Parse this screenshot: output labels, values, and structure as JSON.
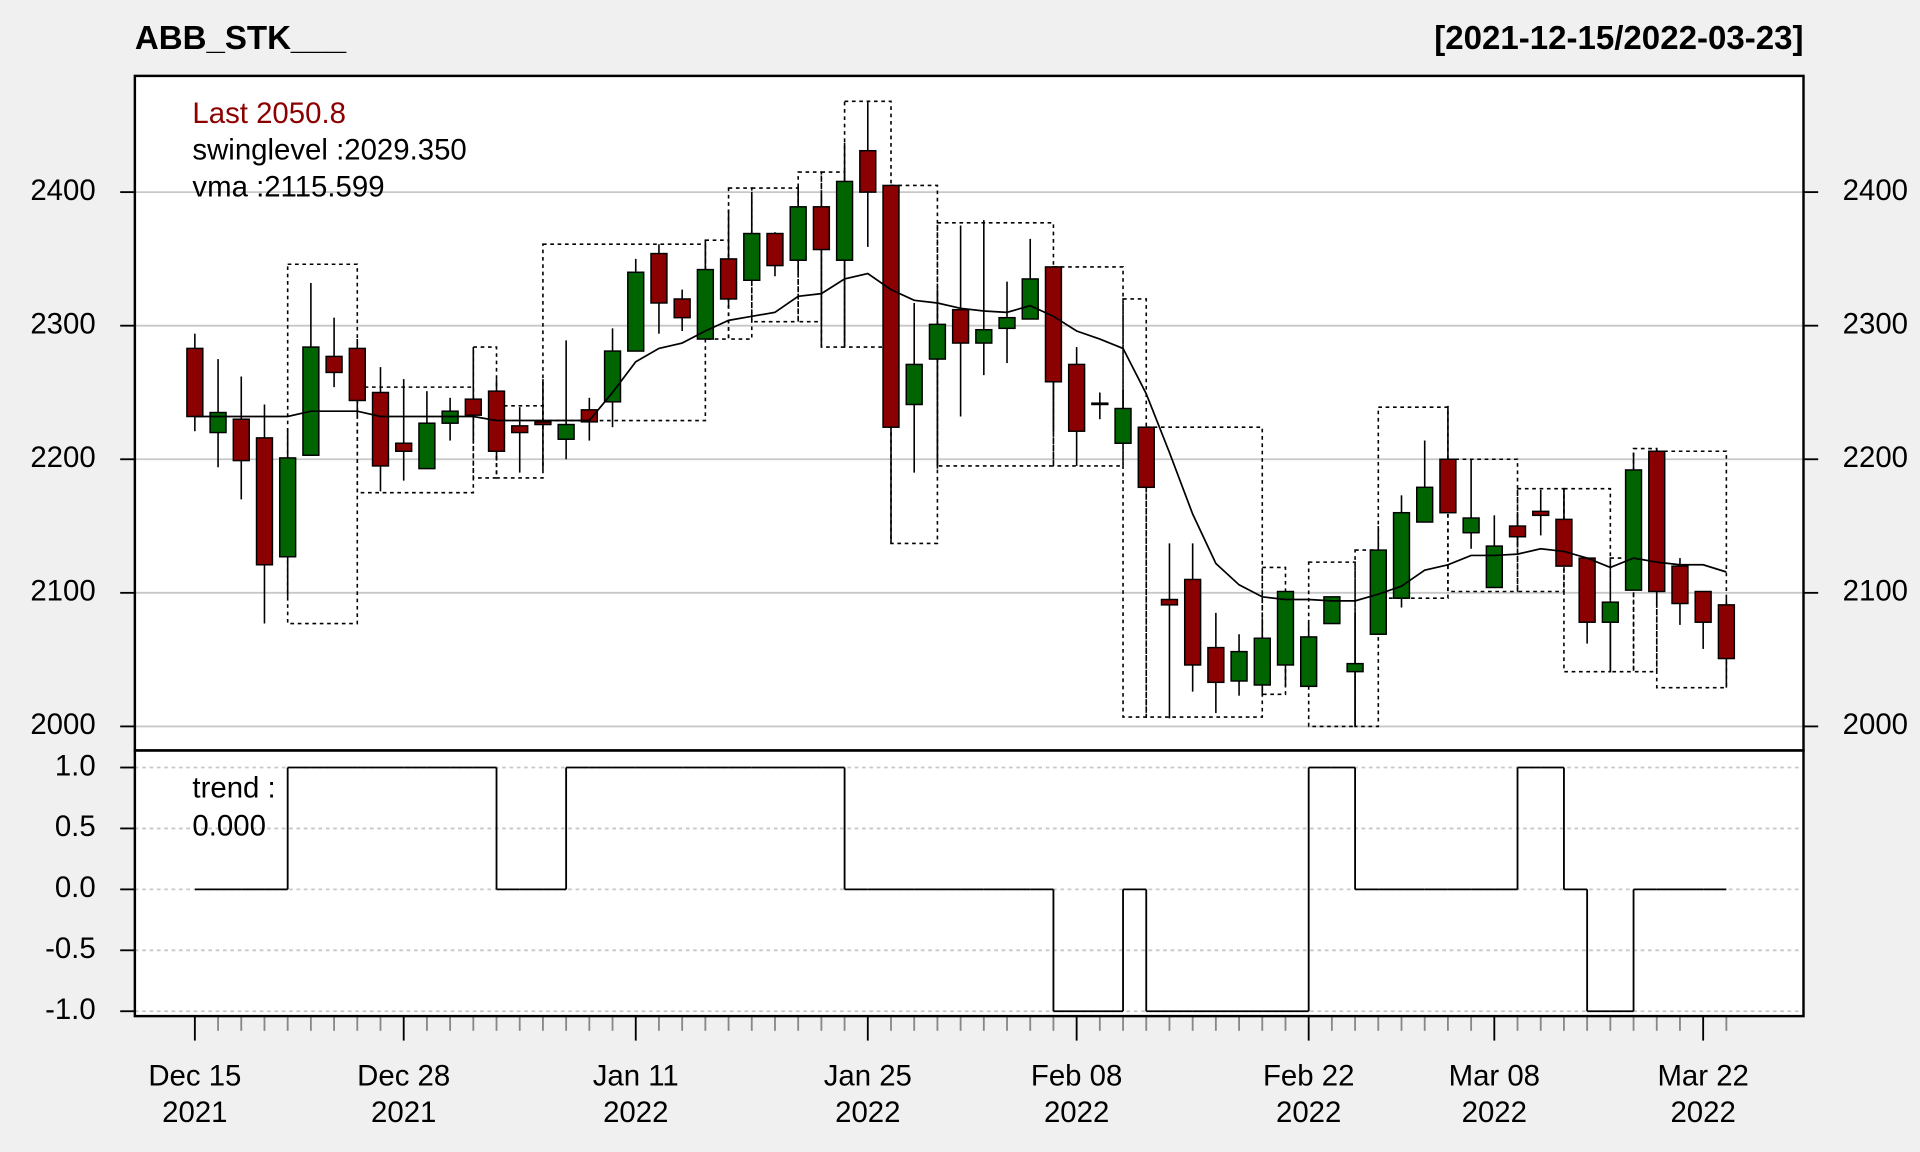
{
  "chart_data": {
    "type": "candlestick",
    "title": "ABB_STK___",
    "date_range": "[2021-12-15/2022-03-23]",
    "last_label": "Last 2050.8",
    "swing_label": "swinglevel :2029.350",
    "vma_label": "vma :2115.599",
    "up_color": "#006400",
    "down_color": "#8b0000",
    "categories": [
      "Dec 15\n2021",
      null,
      null,
      null,
      null,
      null,
      null,
      null,
      null,
      "Dec 28\n2021",
      null,
      null,
      null,
      null,
      null,
      null,
      null,
      null,
      null,
      "Jan 11\n2022",
      null,
      null,
      null,
      null,
      null,
      null,
      null,
      null,
      null,
      "Jan 25\n2022",
      null,
      null,
      null,
      null,
      null,
      null,
      null,
      null,
      "Feb 08\n2022",
      null,
      null,
      null,
      null,
      null,
      null,
      null,
      null,
      null,
      "Feb 22\n2022",
      null,
      null,
      null,
      null,
      null,
      null,
      null,
      "Mar 08\n2022",
      null,
      null,
      null,
      null,
      null,
      null,
      null,
      null,
      "Mar 22\n2022",
      null
    ],
    "open": [
      2283,
      2220,
      2230,
      2216,
      2127,
      2203,
      2277,
      2283,
      2250,
      2212,
      2193,
      2227,
      2245,
      2251,
      2225,
      2228,
      2215,
      2237,
      2243,
      2281,
      2354,
      2320,
      2290,
      2350,
      2334,
      2369,
      2349,
      2389,
      2349,
      2431,
      2405,
      2241,
      2275,
      2312,
      2287,
      2298,
      2305,
      2344,
      2271,
      2242,
      2212,
      2224,
      2095,
      2110,
      2059,
      2034,
      2031,
      2046,
      2030,
      2077,
      2041,
      2069,
      2096,
      2153,
      2200,
      2145,
      2104,
      2150,
      2161,
      2155,
      2126,
      2078,
      2102,
      2206,
      2120,
      2101,
      2091
    ],
    "high": [
      2294,
      2275,
      2262,
      2241,
      2223,
      2332,
      2306,
      2290,
      2269,
      2260,
      2251,
      2246,
      2284,
      2260,
      2239,
      2260,
      2289,
      2246,
      2298,
      2350,
      2361,
      2327,
      2364,
      2387,
      2397,
      2370,
      2405,
      2398,
      2437,
      2468,
      2405,
      2317,
      2327,
      2375,
      2379,
      2333,
      2365,
      2344,
      2284,
      2250,
      2252,
      2224,
      2137,
      2137,
      2085,
      2069,
      2081,
      2101,
      2078,
      2097,
      2085,
      2150,
      2173,
      2214,
      2240,
      2200,
      2158,
      2159,
      2177,
      2177,
      2126,
      2093,
      2205,
      2208,
      2126,
      2101,
      2096
    ],
    "low": [
      2221,
      2194,
      2170,
      2077,
      2097,
      2203,
      2254,
      2232,
      2176,
      2184,
      2193,
      2214,
      2214,
      2199,
      2190,
      2192,
      2200,
      2214,
      2224,
      2281,
      2294,
      2296,
      2290,
      2313,
      2334,
      2337,
      2340,
      2284,
      2284,
      2359,
      2137,
      2190,
      2193,
      2232,
      2263,
      2272,
      2305,
      2221,
      2195,
      2230,
      2212,
      2179,
      2006,
      2026,
      2010,
      2023,
      2023,
      2030,
      2030,
      2077,
      2000,
      2069,
      2089,
      2153,
      2160,
      2133,
      2104,
      2135,
      2143,
      2120,
      2062,
      2041,
      2102,
      2091,
      2076,
      2058,
      2029
    ],
    "close": [
      2232,
      2235,
      2199,
      2121,
      2201,
      2284,
      2265,
      2244,
      2195,
      2206,
      2227,
      2236,
      2233,
      2206,
      2220,
      2226,
      2226,
      2228,
      2281,
      2340,
      2317,
      2306,
      2342,
      2320,
      2369,
      2345,
      2389,
      2357,
      2408,
      2400,
      2224,
      2271,
      2301,
      2287,
      2297,
      2306,
      2335,
      2258,
      2221,
      2241,
      2238,
      2179,
      2091,
      2046,
      2033,
      2056,
      2066,
      2101,
      2067,
      2097,
      2047,
      2132,
      2160,
      2179,
      2160,
      2156,
      2135,
      2142,
      2158,
      2120,
      2078,
      2093,
      2192,
      2101,
      2092,
      2078,
      2050.8
    ],
    "series": [
      {
        "name": "vma",
        "color": "#000000",
        "values": [
          2232,
          2232,
          2232,
          2232,
          2232,
          2236,
          2236,
          2236,
          2232,
          2232,
          2232,
          2232,
          2232,
          2229,
          2229,
          2229,
          2229,
          2229,
          2250,
          2273,
          2283,
          2287,
          2296,
          2304,
          2307,
          2310,
          2322,
          2324,
          2335,
          2339,
          2327,
          2319,
          2317,
          2313,
          2311,
          2310,
          2315,
          2307,
          2296,
          2290,
          2283,
          2249,
          2205,
          2159,
          2122,
          2106,
          2097,
          2095,
          2095,
          2094,
          2094,
          2099,
          2105,
          2117,
          2121,
          2128,
          2128,
          2129,
          2133,
          2131,
          2126,
          2119,
          2126,
          2123,
          2121,
          2121,
          2115.599
        ]
      }
    ],
    "swing_boxes": [
      {
        "start": 4,
        "end": 7,
        "high": 2346,
        "low": 2077
      },
      {
        "start": 7,
        "end": 12,
        "high": 2254,
        "low": 2175
      },
      {
        "start": 12,
        "end": 13,
        "high": 2284,
        "low": 2186
      },
      {
        "start": 13,
        "end": 15,
        "high": 2240,
        "low": 2186
      },
      {
        "start": 15,
        "end": 22,
        "high": 2361,
        "low": 2229
      },
      {
        "start": 22,
        "end": 23,
        "high": 2364,
        "low": 2290
      },
      {
        "start": 23,
        "end": 24,
        "high": 2403,
        "low": 2290
      },
      {
        "start": 24,
        "end": 26,
        "high": 2403,
        "low": 2303
      },
      {
        "start": 26,
        "end": 27,
        "high": 2415,
        "low": 2303
      },
      {
        "start": 27,
        "end": 28,
        "high": 2415,
        "low": 2284
      },
      {
        "start": 28,
        "end": 30,
        "high": 2468,
        "low": 2284
      },
      {
        "start": 30,
        "end": 32,
        "high": 2405,
        "low": 2137
      },
      {
        "start": 32,
        "end": 37,
        "high": 2377,
        "low": 2195
      },
      {
        "start": 37,
        "end": 40,
        "high": 2344,
        "low": 2195
      },
      {
        "start": 40,
        "end": 41,
        "high": 2320,
        "low": 2007
      },
      {
        "start": 41,
        "end": 46,
        "high": 2224,
        "low": 2007
      },
      {
        "start": 46,
        "end": 47,
        "high": 2119,
        "low": 2024
      },
      {
        "start": 48,
        "end": 50,
        "high": 2123,
        "low": 2000
      },
      {
        "start": 50,
        "end": 51,
        "high": 2132,
        "low": 2000
      },
      {
        "start": 51,
        "end": 54,
        "high": 2239,
        "low": 2096
      },
      {
        "start": 54,
        "end": 57,
        "high": 2200,
        "low": 2101
      },
      {
        "start": 57,
        "end": 59,
        "high": 2178,
        "low": 2101
      },
      {
        "start": 59,
        "end": 61,
        "high": 2178,
        "low": 2041
      },
      {
        "start": 61,
        "end": 62,
        "high": 2126,
        "low": 2041
      },
      {
        "start": 62,
        "end": 63,
        "high": 2208,
        "low": 2041
      },
      {
        "start": 63,
        "end": 66,
        "high": 2206,
        "low": 2029
      }
    ],
    "ylim": [
      1982,
      2487
    ],
    "yticks": [
      2000,
      2100,
      2200,
      2300,
      2400
    ],
    "grid": true,
    "trend": {
      "label": "trend :",
      "last_label": "0.000",
      "values": [
        0,
        0,
        0,
        0,
        1,
        1,
        1,
        1,
        1,
        1,
        1,
        1,
        1,
        0,
        0,
        0,
        1,
        1,
        1,
        1,
        1,
        1,
        1,
        1,
        1,
        1,
        1,
        1,
        0,
        0,
        0,
        0,
        0,
        0,
        0,
        0,
        0,
        -1,
        -1,
        -1,
        0,
        -1,
        -1,
        -1,
        -1,
        -1,
        -1,
        -1,
        1,
        1,
        0,
        0,
        0,
        0,
        0,
        0,
        0,
        1,
        1,
        0,
        -1,
        -1,
        0,
        0,
        0,
        0,
        0
      ],
      "ylim": [
        -1.04,
        1.14
      ],
      "yticks": [
        {
          "value": 1,
          "label": "1.0"
        },
        {
          "value": 0.5,
          "label": "0.5"
        },
        {
          "value": 0,
          "label": "0.0"
        },
        {
          "value": -0.5,
          "label": "-0.5"
        },
        {
          "value": -1,
          "label": "-1.0"
        }
      ]
    }
  }
}
